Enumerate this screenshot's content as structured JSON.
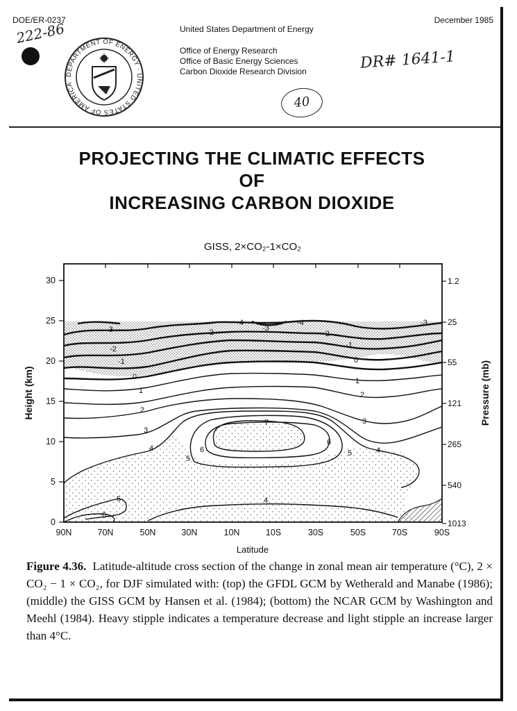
{
  "header": {
    "doc_number": "DOE/ER-0237",
    "date": "December 1985",
    "agency": "United States Department of Energy",
    "offices": [
      "Office of Energy Research",
      "Office of Basic Energy Sciences",
      "Carbon Dioxide Research Division"
    ],
    "handwritten_top_left": "222-86",
    "handwritten_right": "DR# 1641-1",
    "circled_number": "40",
    "seal_text": "DEPARTMENT OF ENERGY · UNITED STATES OF AMERICA"
  },
  "title": {
    "lines": [
      "PROJECTING THE CLIMATIC EFFECTS",
      "OF",
      "INCREASING CARBON DIOXIDE"
    ]
  },
  "figure": {
    "plot_title": "GISS, 2×CO₂-1×CO₂",
    "xlabel": "Latitude",
    "ylabel_left": "Height (km)",
    "ylabel_right": "Pressure (mb)",
    "x_ticks": [
      "90N",
      "70N",
      "50N",
      "30N",
      "10N",
      "10S",
      "30S",
      "50S",
      "70S",
      "90S"
    ],
    "y_ticks_left": [
      "0",
      "5",
      "10",
      "15",
      "20",
      "25",
      "30"
    ],
    "y_ticks_right": [
      "1013",
      "540",
      "265",
      "121",
      "55",
      "25",
      "1.2"
    ],
    "contour_labels": [
      "-4",
      "-3",
      "-4",
      "-3",
      "-3",
      "-2",
      "-2",
      "-2",
      "-1",
      "-1",
      "0",
      "0",
      "1",
      "1",
      "2",
      "2",
      "3",
      "3",
      "4",
      "4",
      "4",
      "5",
      "5",
      "5",
      "6",
      "6",
      "6",
      "7"
    ]
  },
  "caption": {
    "label": "Figure 4.36.",
    "text": "Latitude-altitude cross section of the change in zonal mean air temperature (°C), 2 × CO₂ − 1 × CO₂, for DJF simulated with: (top) the GFDL GCM by Wetherald and Manabe (1986); (middle) the GISS GCM by Hansen et al. (1984); (bottom) the NCAR GCM by Washington and Meehl (1984). Heavy stipple indicates a temperature decrease and light stipple an increase larger than 4°C."
  }
}
